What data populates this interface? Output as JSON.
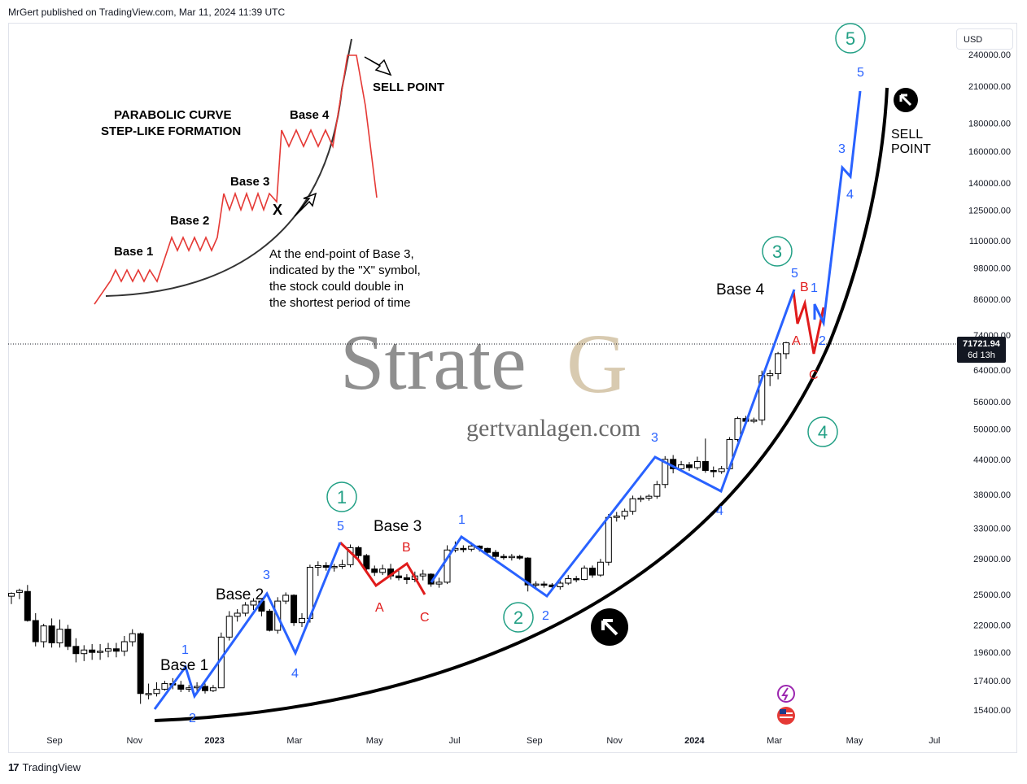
{
  "header": {
    "published": "MrGert published on TradingView.com, Mar 11, 2024 11:39 UTC"
  },
  "currency_button": "USD",
  "price_tag": {
    "value": "71721.94",
    "countdown": "6d 13h"
  },
  "footer": {
    "brand": "TradingView"
  },
  "watermark": {
    "logo_a": "Strate",
    "logo_b": "G",
    "site": "gertvanlagen.com"
  },
  "inset": {
    "title_1": "PARABOLIC CURVE",
    "title_2": "STEP-LIKE FORMATION",
    "base1": "Base 1",
    "base2": "Base 2",
    "base3": "Base 3",
    "base4": "Base 4",
    "x_mark": "X",
    "sell": "SELL POINT",
    "note": [
      "At the end-point of Base 3,",
      "indicated by the \"X\" symbol,",
      "the stock could double in",
      "the shortest period of time"
    ]
  },
  "chart_data": {
    "type": "candlestick",
    "scale": "log",
    "y_ticks": [
      240000,
      210000,
      180000,
      160000,
      140000,
      125000,
      110000,
      98000,
      86000,
      74000,
      64000,
      56000,
      50000,
      44000,
      38000,
      33000,
      29000,
      25000,
      22000,
      19600,
      17400,
      15400
    ],
    "y_tick_labels": [
      "240000.00",
      "210000.00",
      "180000.00",
      "160000.00",
      "140000.00",
      "125000.00",
      "110000.00",
      "98000.00",
      "86000.00",
      "74000.00",
      "64000.00",
      "56000.00",
      "50000.00",
      "44000.00",
      "38000.00",
      "33000.00",
      "29000.00",
      "25000.00",
      "22000.00",
      "19600.00",
      "17400.00",
      "15400.00"
    ],
    "x_ticks": [
      "Sep",
      "Nov",
      "2023",
      "Mar",
      "May",
      "Jul",
      "Sep",
      "Nov",
      "2024",
      "Mar",
      "May",
      "Jul"
    ],
    "last_price": 71721.94,
    "candles": [
      [
        24800,
        25100,
        24000,
        25200
      ],
      [
        25200,
        25400,
        24500,
        25600
      ],
      [
        25300,
        22400,
        22300,
        26000
      ],
      [
        22400,
        20500,
        20100,
        23100
      ],
      [
        20500,
        21900,
        20000,
        22100
      ],
      [
        21900,
        20400,
        20000,
        22600
      ],
      [
        20400,
        21600,
        20000,
        22500
      ],
      [
        21600,
        20100,
        19800,
        22000
      ],
      [
        20100,
        19500,
        18800,
        20800
      ],
      [
        19500,
        19800,
        18900,
        20200
      ],
      [
        19800,
        19600,
        19000,
        20300
      ],
      [
        19600,
        19700,
        19000,
        20300
      ],
      [
        19700,
        19900,
        19200,
        20400
      ],
      [
        19900,
        19700,
        19200,
        20400
      ],
      [
        19700,
        20500,
        19300,
        21000
      ],
      [
        20500,
        21200,
        20100,
        21600
      ],
      [
        21200,
        16500,
        15800,
        21300
      ],
      [
        16500,
        16500,
        16100,
        17200
      ],
      [
        16500,
        16800,
        16300,
        17300
      ],
      [
        16800,
        17200,
        16700,
        17400
      ],
      [
        17200,
        17100,
        16800,
        17600
      ],
      [
        17100,
        16800,
        16600,
        17400
      ],
      [
        16800,
        16900,
        16600,
        17100
      ],
      [
        16900,
        17000,
        16700,
        17300
      ],
      [
        17000,
        16700,
        16500,
        17200
      ],
      [
        16700,
        16900,
        16600,
        17100
      ],
      [
        16900,
        20900,
        16900,
        21300
      ],
      [
        20900,
        22800,
        20600,
        23300
      ],
      [
        22800,
        23100,
        22300,
        23500
      ],
      [
        23100,
        23900,
        22800,
        24200
      ],
      [
        23900,
        24300,
        23400,
        24600
      ],
      [
        24300,
        23300,
        22800,
        24500
      ],
      [
        23300,
        21500,
        21400,
        23500
      ],
      [
        21500,
        24300,
        21200,
        24700
      ],
      [
        24300,
        24900,
        24000,
        25200
      ],
      [
        24900,
        22200,
        21900,
        25000
      ],
      [
        22200,
        22600,
        21800,
        23100
      ],
      [
        22600,
        28000,
        22200,
        28300
      ],
      [
        28000,
        28200,
        27000,
        28700
      ],
      [
        28200,
        28000,
        27600,
        28600
      ],
      [
        28000,
        28100,
        27500,
        28400
      ],
      [
        28100,
        28300,
        27800,
        28900
      ],
      [
        28300,
        30400,
        28000,
        30800
      ],
      [
        30400,
        29400,
        29000,
        30600
      ],
      [
        29400,
        27800,
        27300,
        29600
      ],
      [
        27800,
        27400,
        27000,
        28200
      ],
      [
        27400,
        27800,
        27100,
        28300
      ],
      [
        27800,
        27000,
        26600,
        28400
      ],
      [
        27000,
        26800,
        26500,
        27600
      ],
      [
        26800,
        26600,
        26100,
        27200
      ],
      [
        26600,
        27000,
        26300,
        27500
      ],
      [
        27000,
        27200,
        26500,
        27700
      ],
      [
        27200,
        26100,
        25800,
        27300
      ],
      [
        26100,
        26300,
        25700,
        26800
      ],
      [
        26300,
        30100,
        26100,
        30700
      ],
      [
        30100,
        30300,
        29800,
        31200
      ],
      [
        30300,
        30200,
        29800,
        30700
      ],
      [
        30200,
        30600,
        29900,
        31100
      ],
      [
        30600,
        30300,
        29900,
        30700
      ],
      [
        30300,
        29800,
        29400,
        30400
      ],
      [
        29800,
        29300,
        29000,
        30100
      ],
      [
        29300,
        29200,
        28900,
        29600
      ],
      [
        29200,
        29300,
        28800,
        29600
      ],
      [
        29300,
        29100,
        28900,
        29500
      ],
      [
        29100,
        26000,
        25300,
        29200
      ],
      [
        26000,
        26100,
        25600,
        26400
      ],
      [
        26100,
        26000,
        25700,
        26400
      ],
      [
        26000,
        25800,
        25400,
        26200
      ],
      [
        25800,
        26200,
        25500,
        26500
      ],
      [
        26200,
        26700,
        26000,
        27100
      ],
      [
        26700,
        26600,
        26300,
        27000
      ],
      [
        26600,
        27900,
        26500,
        28200
      ],
      [
        27900,
        27100,
        26800,
        28200
      ],
      [
        27100,
        28600,
        26900,
        29000
      ],
      [
        28600,
        34500,
        28200,
        35000
      ],
      [
        34500,
        34700,
        33900,
        35300
      ],
      [
        34700,
        35400,
        34200,
        35800
      ],
      [
        35400,
        37300,
        34900,
        37800
      ],
      [
        37300,
        37400,
        36800,
        37800
      ],
      [
        37400,
        37700,
        37000,
        38000
      ],
      [
        37700,
        39600,
        37300,
        40200
      ],
      [
        39600,
        44000,
        39000,
        44600
      ],
      [
        44000,
        42300,
        41500,
        44800
      ],
      [
        42300,
        43000,
        41800,
        43700
      ],
      [
        43000,
        42500,
        41900,
        43500
      ],
      [
        42500,
        43600,
        42100,
        44500
      ],
      [
        43600,
        42000,
        41600,
        48000
      ],
      [
        42000,
        41800,
        40800,
        42700
      ],
      [
        41800,
        42300,
        41400,
        42800
      ],
      [
        42300,
        47800,
        42100,
        48300
      ],
      [
        47800,
        52200,
        47400,
        52600
      ],
      [
        52200,
        51600,
        50800,
        52800
      ],
      [
        51600,
        51900,
        51200,
        52400
      ],
      [
        51900,
        62500,
        50800,
        63800
      ],
      [
        62500,
        63000,
        59800,
        64000
      ],
      [
        63000,
        68500,
        61500,
        69000
      ],
      [
        68500,
        71721,
        67000,
        72000
      ]
    ],
    "wave_lines": [
      {
        "color": "#2962ff",
        "points": [
          [
            16000,
            "2022-11-20"
          ],
          [
            18600,
            "2022-12-12"
          ],
          [
            16400,
            "2022-12-20"
          ],
          [
            24900,
            "2023-02-15"
          ],
          [
            19600,
            "2023-03-10"
          ],
          [
            31000,
            "2023-04-14"
          ]
        ]
      },
      {
        "color": "#2962ff",
        "points": [
          [
            26000,
            "2023-06-15"
          ],
          [
            31100,
            "2023-07-12"
          ],
          [
            25500,
            "2023-09-10"
          ],
          [
            44000,
            "2023-12-05"
          ],
          [
            38700,
            "2024-01-22"
          ],
          [
            86500,
            "2024-03-12"
          ]
        ]
      },
      {
        "color": "#2962ff",
        "points": [
          [
            71000,
            "2024-03-24"
          ],
          [
            83000,
            "2024-03-28"
          ],
          [
            77000,
            "2024-04-03"
          ],
          [
            151000,
            "2024-04-25"
          ],
          [
            143000,
            "2024-05-01"
          ],
          [
            214000,
            "2024-05-22"
          ]
        ]
      }
    ],
    "wave_labels": [
      "1",
      "2",
      "3",
      "4",
      "5",
      "A",
      "B",
      "C",
      "Base 1",
      "Base 2",
      "Base 3",
      "Base 4",
      "SELL",
      "POINT"
    ],
    "circled_labels": [
      "1",
      "2",
      "3",
      "4",
      "5"
    ]
  }
}
